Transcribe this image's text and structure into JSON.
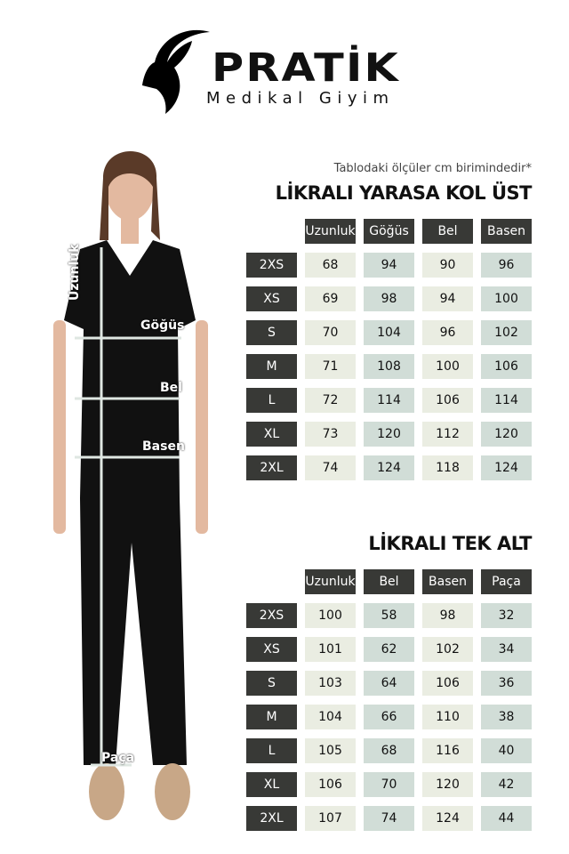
{
  "logo": {
    "brand": "PRATİK",
    "subtitle": "Medikal Giyim",
    "icon": "ibex-head-icon"
  },
  "note": "Tablodaki ölçüler cm birimindedir*",
  "figure": {
    "labels": {
      "length": "Uzunluk",
      "chest": "Göğüs",
      "waist": "Bel",
      "hip": "Basen",
      "hem": "Paça"
    }
  },
  "colors": {
    "header": "#383936",
    "col_light": "#eaede2",
    "col_teal": "#d1ddd7"
  },
  "tables": [
    {
      "title": "LİKRALI YARASA KOL ÜST",
      "headers": [
        "Uzunluk",
        "Göğüs",
        "Bel",
        "Basen"
      ],
      "rows": [
        [
          "2XS",
          "68",
          "94",
          "90",
          "96"
        ],
        [
          "XS",
          "69",
          "98",
          "94",
          "100"
        ],
        [
          "S",
          "70",
          "104",
          "96",
          "102"
        ],
        [
          "M",
          "71",
          "108",
          "100",
          "106"
        ],
        [
          "L",
          "72",
          "114",
          "106",
          "114"
        ],
        [
          "XL",
          "73",
          "120",
          "112",
          "120"
        ],
        [
          "2XL",
          "74",
          "124",
          "118",
          "124"
        ]
      ]
    },
    {
      "title": "LİKRALI TEK ALT",
      "headers": [
        "Uzunluk",
        "Bel",
        "Basen",
        "Paça"
      ],
      "rows": [
        [
          "2XS",
          "100",
          "58",
          "98",
          "32"
        ],
        [
          "XS",
          "101",
          "62",
          "102",
          "34"
        ],
        [
          "S",
          "103",
          "64",
          "106",
          "36"
        ],
        [
          "M",
          "104",
          "66",
          "110",
          "38"
        ],
        [
          "L",
          "105",
          "68",
          "116",
          "40"
        ],
        [
          "XL",
          "106",
          "70",
          "120",
          "42"
        ],
        [
          "2XL",
          "107",
          "74",
          "124",
          "44"
        ]
      ]
    }
  ]
}
